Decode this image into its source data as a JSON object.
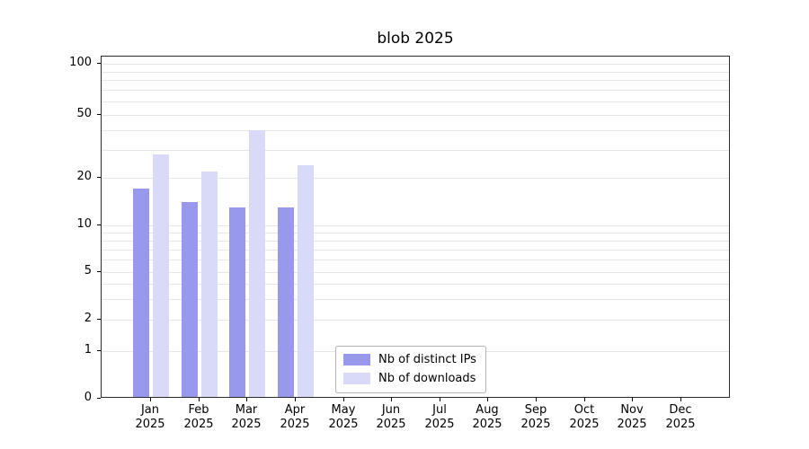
{
  "chart_data": {
    "type": "bar",
    "title": "blob 2025",
    "scale": "log-like (symlog)",
    "grid": "on",
    "legend_position": "bottom-center-inside",
    "categories": [
      "Jan",
      "Feb",
      "Mar",
      "Apr",
      "May",
      "Jun",
      "Jul",
      "Aug",
      "Sep",
      "Oct",
      "Nov",
      "Dec"
    ],
    "year_label": "2025",
    "y_ticks": [
      0,
      1,
      2,
      5,
      10,
      20,
      50,
      100
    ],
    "gridline_values": [
      1,
      2,
      3,
      4,
      5,
      6,
      7,
      8,
      9,
      10,
      20,
      30,
      40,
      50,
      60,
      70,
      80,
      90,
      100
    ],
    "ylim": [
      0,
      100
    ],
    "series": [
      {
        "name": "Nb of distinct IPs",
        "color": "#9898ec",
        "values": [
          17,
          14,
          13,
          13,
          null,
          null,
          null,
          null,
          null,
          null,
          null,
          null
        ]
      },
      {
        "name": "Nb of downloads",
        "color": "#d9d9f8",
        "values": [
          28,
          22,
          40,
          24,
          null,
          null,
          null,
          null,
          null,
          null,
          null,
          null
        ]
      }
    ]
  }
}
